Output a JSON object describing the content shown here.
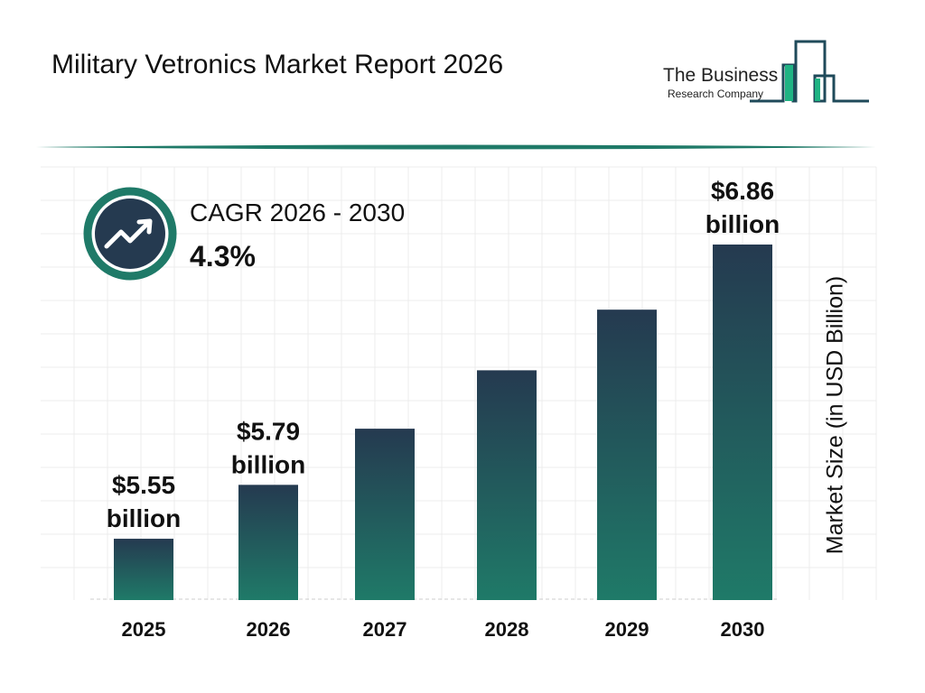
{
  "header": {
    "title": "Military Vetronics Market Report 2026"
  },
  "logo": {
    "line1": "The Business",
    "line2": "Research Company"
  },
  "cagr": {
    "label": "CAGR 2026 - 2030",
    "value": "4.3%",
    "icon": "trending-up-icon"
  },
  "colors": {
    "bar_top": "#253a50",
    "bar_bottom": "#1f7a68",
    "ring": "#1f7a68",
    "circle": "#253a50",
    "logo_green": "#1fb383",
    "logo_line": "#1f4a5a"
  },
  "chart_data": {
    "type": "bar",
    "categories": [
      "2025",
      "2026",
      "2027",
      "2028",
      "2029",
      "2030"
    ],
    "values": [
      5.55,
      5.79,
      6.04,
      6.3,
      6.57,
      6.86
    ],
    "data_labels": [
      "$5.55 billion",
      "$5.79 billion",
      "",
      "",
      "",
      "$6.86 billion"
    ],
    "title": "",
    "xlabel": "",
    "ylabel": "Market Size (in USD Billion)",
    "grid": true
  }
}
